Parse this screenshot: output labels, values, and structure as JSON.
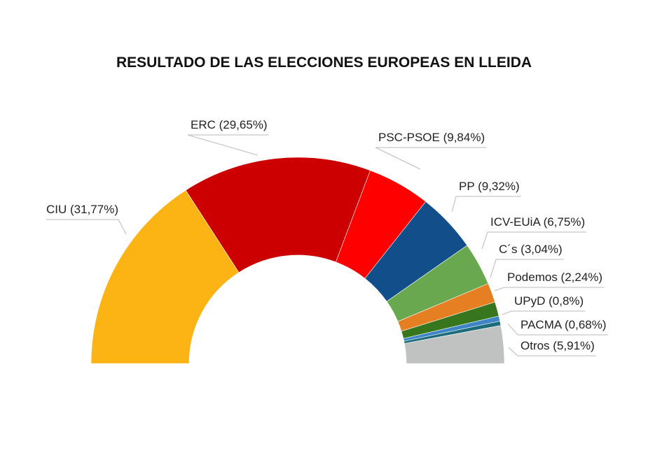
{
  "chart_data": {
    "type": "pie",
    "subtype": "semi-donut",
    "title": "RESULTADO DE LAS ELECCIONES EUROPEAS EN LLEIDA",
    "slices": [
      {
        "name": "CIU",
        "value": 31.77,
        "label": "CIU (31,77%)",
        "color": "#fbb414"
      },
      {
        "name": "ERC",
        "value": 29.65,
        "label": "ERC (29,65%)",
        "color": "#cc0000"
      },
      {
        "name": "PSC-PSOE",
        "value": 9.84,
        "label": "PSC-PSOE (9,84%)",
        "color": "#ff0000"
      },
      {
        "name": "PP",
        "value": 9.32,
        "label": "PP (9,32%)",
        "color": "#124e89"
      },
      {
        "name": "ICV-EUiA",
        "value": 6.75,
        "label": "ICV-EUiA (6,75%)",
        "color": "#6aa84f"
      },
      {
        "name": "C´s",
        "value": 3.04,
        "label": "C´s (3,04%)",
        "color": "#e67e22"
      },
      {
        "name": "Podemos",
        "value": 2.24,
        "label": "Podemos (2,24%)",
        "color": "#38761d"
      },
      {
        "name": "UPyD",
        "value": 0.8,
        "label": "UPyD (0,8%)",
        "color": "#3d85c6"
      },
      {
        "name": "PACMA",
        "value": 0.68,
        "label": "PACMA (0,68%)",
        "color": "#1b6b7a"
      },
      {
        "name": "Otros",
        "value": 5.91,
        "label": "Otros (5,91%)",
        "color": "#bfc2c0"
      }
    ]
  }
}
